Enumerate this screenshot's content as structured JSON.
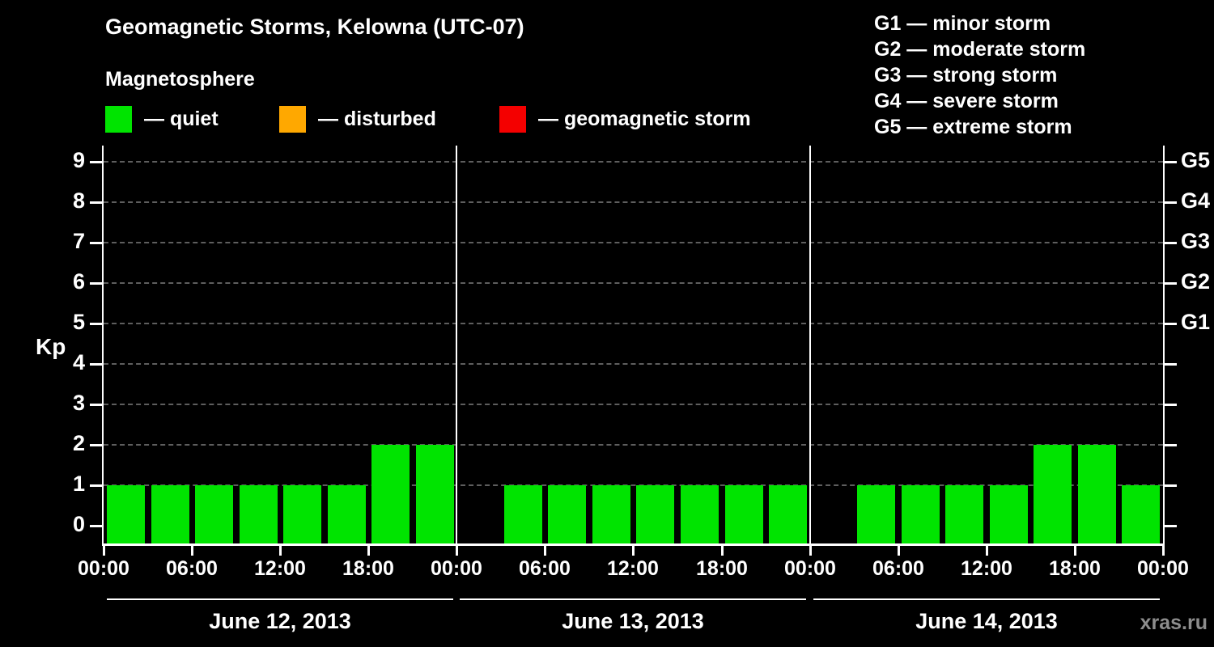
{
  "header": {
    "title": "Geomagnetic Storms, Kelowna (UTC-07)",
    "subtitle": "Magnetosphere"
  },
  "legend": {
    "items": [
      {
        "label": "— quiet",
        "color": "#00e400"
      },
      {
        "label": "— disturbed",
        "color": "#ffa800"
      },
      {
        "label": "— geomagnetic storm",
        "color": "#f40000"
      }
    ]
  },
  "storm_scale": {
    "lines": [
      "G1 — minor storm",
      "G2 — moderate storm",
      "G3 — strong storm",
      "G4 — severe storm",
      "G5 — extreme storm"
    ]
  },
  "watermark": "xras.ru",
  "chart_data": {
    "type": "bar",
    "title": "Geomagnetic Storms, Kelowna (UTC-07)",
    "ylabel": "Kp",
    "ylim": [
      0,
      9
    ],
    "yticks": [
      0,
      1,
      2,
      3,
      4,
      5,
      6,
      7,
      8,
      9
    ],
    "grid": true,
    "right_axis": [
      {
        "label": "G5",
        "kp": 9
      },
      {
        "label": "G4",
        "kp": 8
      },
      {
        "label": "G3",
        "kp": 7
      },
      {
        "label": "G2",
        "kp": 6
      },
      {
        "label": "G1",
        "kp": 5
      }
    ],
    "time_ticks": [
      "00:00",
      "06:00",
      "12:00",
      "18:00"
    ],
    "closing_tick": "00:00",
    "bar_interval_hours": 3,
    "colors": {
      "quiet": "#00e400",
      "disturbed": "#ffa800",
      "storm": "#f40000"
    },
    "days": [
      {
        "date": "June 12, 2013",
        "values": [
          1,
          1,
          1,
          1,
          1,
          1,
          2,
          2
        ]
      },
      {
        "date": "June 13, 2013",
        "values": [
          0,
          1,
          1,
          1,
          1,
          1,
          1,
          1
        ]
      },
      {
        "date": "June 14, 2013",
        "values": [
          0,
          1,
          1,
          1,
          1,
          2,
          2,
          1
        ]
      }
    ]
  }
}
